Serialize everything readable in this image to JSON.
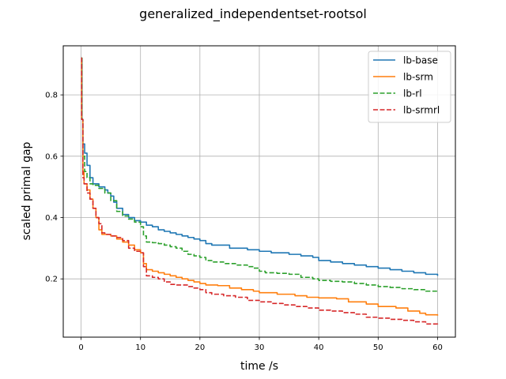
{
  "chart_data": {
    "type": "line",
    "title": "generalized_independentset-rootsol",
    "xlabel": "time /s",
    "ylabel": "scaled primal gap",
    "xlim": [
      -3,
      63
    ],
    "ylim": [
      0.01,
      0.96
    ],
    "xticks": [
      0,
      10,
      20,
      30,
      40,
      50,
      60
    ],
    "yticks": [
      0.2,
      0.4,
      0.6,
      0.8
    ],
    "grid": true,
    "legend_position": "top-right",
    "series": [
      {
        "name": "lb-base",
        "color": "#1f77b4",
        "dash": "solid",
        "points": [
          [
            0,
            0.92
          ],
          [
            0.15,
            0.72
          ],
          [
            0.3,
            0.64
          ],
          [
            0.6,
            0.61
          ],
          [
            1,
            0.57
          ],
          [
            1.5,
            0.53
          ],
          [
            2,
            0.51
          ],
          [
            3,
            0.5
          ],
          [
            4,
            0.49
          ],
          [
            4.5,
            0.48
          ],
          [
            5,
            0.47
          ],
          [
            5.5,
            0.45
          ],
          [
            6,
            0.43
          ],
          [
            7,
            0.41
          ],
          [
            8,
            0.4
          ],
          [
            9,
            0.39
          ],
          [
            10,
            0.385
          ],
          [
            11,
            0.375
          ],
          [
            12,
            0.37
          ],
          [
            13,
            0.36
          ],
          [
            14,
            0.355
          ],
          [
            15,
            0.35
          ],
          [
            16,
            0.345
          ],
          [
            17,
            0.34
          ],
          [
            18,
            0.335
          ],
          [
            19,
            0.33
          ],
          [
            20,
            0.325
          ],
          [
            21,
            0.315
          ],
          [
            22,
            0.31
          ],
          [
            25,
            0.3
          ],
          [
            28,
            0.295
          ],
          [
            30,
            0.29
          ],
          [
            32,
            0.285
          ],
          [
            35,
            0.28
          ],
          [
            37,
            0.275
          ],
          [
            39,
            0.27
          ],
          [
            40,
            0.26
          ],
          [
            42,
            0.255
          ],
          [
            44,
            0.25
          ],
          [
            46,
            0.245
          ],
          [
            48,
            0.24
          ],
          [
            50,
            0.235
          ],
          [
            52,
            0.23
          ],
          [
            54,
            0.225
          ],
          [
            56,
            0.22
          ],
          [
            58,
            0.215
          ],
          [
            60,
            0.21
          ]
        ]
      },
      {
        "name": "lb-srm",
        "color": "#ff7f0e",
        "dash": "solid",
        "points": [
          [
            0,
            0.92
          ],
          [
            0.1,
            0.72
          ],
          [
            0.3,
            0.55
          ],
          [
            0.5,
            0.51
          ],
          [
            1,
            0.49
          ],
          [
            1.5,
            0.46
          ],
          [
            2,
            0.43
          ],
          [
            2.5,
            0.4
          ],
          [
            3,
            0.36
          ],
          [
            3.5,
            0.345
          ],
          [
            4,
            0.345
          ],
          [
            5,
            0.34
          ],
          [
            6,
            0.33
          ],
          [
            7,
            0.32
          ],
          [
            8,
            0.31
          ],
          [
            9,
            0.295
          ],
          [
            10,
            0.285
          ],
          [
            10.5,
            0.25
          ],
          [
            11,
            0.23
          ],
          [
            12,
            0.225
          ],
          [
            13,
            0.22
          ],
          [
            14,
            0.215
          ],
          [
            15,
            0.21
          ],
          [
            16,
            0.205
          ],
          [
            17,
            0.2
          ],
          [
            18,
            0.195
          ],
          [
            19,
            0.19
          ],
          [
            20,
            0.185
          ],
          [
            21,
            0.18
          ],
          [
            23,
            0.178
          ],
          [
            25,
            0.17
          ],
          [
            27,
            0.165
          ],
          [
            29,
            0.16
          ],
          [
            30,
            0.155
          ],
          [
            33,
            0.15
          ],
          [
            36,
            0.145
          ],
          [
            38,
            0.14
          ],
          [
            40,
            0.138
          ],
          [
            43,
            0.135
          ],
          [
            45,
            0.125
          ],
          [
            48,
            0.118
          ],
          [
            50,
            0.11
          ],
          [
            53,
            0.105
          ],
          [
            55,
            0.095
          ],
          [
            57,
            0.088
          ],
          [
            58,
            0.083
          ],
          [
            60,
            0.08
          ]
        ]
      },
      {
        "name": "lb-rl",
        "color": "#2ca02c",
        "dash": "dashed",
        "points": [
          [
            0,
            0.92
          ],
          [
            0.15,
            0.72
          ],
          [
            0.3,
            0.6
          ],
          [
            0.6,
            0.55
          ],
          [
            1,
            0.53
          ],
          [
            1.5,
            0.51
          ],
          [
            2,
            0.505
          ],
          [
            3,
            0.495
          ],
          [
            4,
            0.48
          ],
          [
            5,
            0.455
          ],
          [
            6,
            0.42
          ],
          [
            7,
            0.405
          ],
          [
            8,
            0.395
          ],
          [
            9,
            0.385
          ],
          [
            10,
            0.37
          ],
          [
            10.5,
            0.34
          ],
          [
            11,
            0.32
          ],
          [
            12,
            0.318
          ],
          [
            13,
            0.315
          ],
          [
            14,
            0.31
          ],
          [
            15,
            0.305
          ],
          [
            16,
            0.3
          ],
          [
            17,
            0.29
          ],
          [
            18,
            0.28
          ],
          [
            19,
            0.275
          ],
          [
            20,
            0.27
          ],
          [
            21,
            0.26
          ],
          [
            22,
            0.255
          ],
          [
            24,
            0.25
          ],
          [
            26,
            0.245
          ],
          [
            28,
            0.24
          ],
          [
            29,
            0.235
          ],
          [
            30,
            0.225
          ],
          [
            31,
            0.22
          ],
          [
            33,
            0.218
          ],
          [
            35,
            0.215
          ],
          [
            37,
            0.205
          ],
          [
            39,
            0.2
          ],
          [
            40,
            0.195
          ],
          [
            42,
            0.192
          ],
          [
            44,
            0.19
          ],
          [
            46,
            0.185
          ],
          [
            48,
            0.18
          ],
          [
            50,
            0.175
          ],
          [
            52,
            0.172
          ],
          [
            54,
            0.168
          ],
          [
            56,
            0.165
          ],
          [
            58,
            0.16
          ],
          [
            60,
            0.155
          ]
        ]
      },
      {
        "name": "lb-srmrl",
        "color": "#d62728",
        "dash": "dashed",
        "points": [
          [
            0,
            0.92
          ],
          [
            0.1,
            0.72
          ],
          [
            0.3,
            0.53
          ],
          [
            0.5,
            0.51
          ],
          [
            1,
            0.48
          ],
          [
            1.5,
            0.46
          ],
          [
            2,
            0.43
          ],
          [
            2.5,
            0.4
          ],
          [
            3,
            0.38
          ],
          [
            3.5,
            0.35
          ],
          [
            4,
            0.345
          ],
          [
            5,
            0.34
          ],
          [
            6,
            0.335
          ],
          [
            7,
            0.325
          ],
          [
            8,
            0.3
          ],
          [
            9,
            0.29
          ],
          [
            10,
            0.285
          ],
          [
            10.5,
            0.24
          ],
          [
            11,
            0.21
          ],
          [
            12,
            0.205
          ],
          [
            13,
            0.2
          ],
          [
            14,
            0.19
          ],
          [
            15,
            0.182
          ],
          [
            16,
            0.18
          ],
          [
            18,
            0.175
          ],
          [
            19,
            0.17
          ],
          [
            20,
            0.165
          ],
          [
            21,
            0.155
          ],
          [
            22,
            0.15
          ],
          [
            24,
            0.145
          ],
          [
            26,
            0.14
          ],
          [
            28,
            0.13
          ],
          [
            30,
            0.125
          ],
          [
            32,
            0.12
          ],
          [
            34,
            0.115
          ],
          [
            36,
            0.11
          ],
          [
            38,
            0.105
          ],
          [
            40,
            0.098
          ],
          [
            42,
            0.095
          ],
          [
            44,
            0.09
          ],
          [
            46,
            0.085
          ],
          [
            48,
            0.075
          ],
          [
            50,
            0.072
          ],
          [
            52,
            0.068
          ],
          [
            54,
            0.065
          ],
          [
            56,
            0.06
          ],
          [
            58,
            0.053
          ],
          [
            60,
            0.05
          ]
        ]
      }
    ]
  }
}
